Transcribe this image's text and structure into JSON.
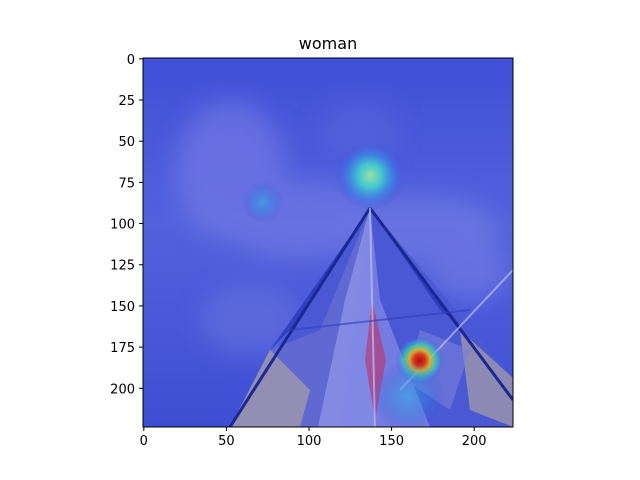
{
  "chart_data": {
    "type": "heatmap",
    "title": "woman",
    "xlabel": "",
    "ylabel": "",
    "xlim": [
      -0.5,
      223.5
    ],
    "ylim": [
      223.5,
      -0.5
    ],
    "x_ticks": [
      0,
      50,
      100,
      150,
      200
    ],
    "y_ticks": [
      0,
      25,
      50,
      75,
      100,
      125,
      150,
      175,
      200
    ],
    "colormap": "jet",
    "background_image": "kite against a blue sky, seen from below, with a pyramid-shaped frame",
    "hotspots": [
      {
        "x": 167,
        "y": 183,
        "intensity": 1.0,
        "spread": 9
      },
      {
        "x": 137,
        "y": 71,
        "intensity": 0.45,
        "spread": 13
      },
      {
        "x": 72,
        "y": 87,
        "intensity": 0.25,
        "spread": 8
      },
      {
        "x": 160,
        "y": 205,
        "intensity": 0.35,
        "spread": 14
      }
    ],
    "grid": false
  },
  "colors": {
    "overlay_base": "#3a4cd6",
    "sky_light": "#6a7ae6",
    "kite_light": "#8c93e8",
    "kite_dark": "#2a3ab8",
    "kite_stripe": "#b2a6a8"
  }
}
